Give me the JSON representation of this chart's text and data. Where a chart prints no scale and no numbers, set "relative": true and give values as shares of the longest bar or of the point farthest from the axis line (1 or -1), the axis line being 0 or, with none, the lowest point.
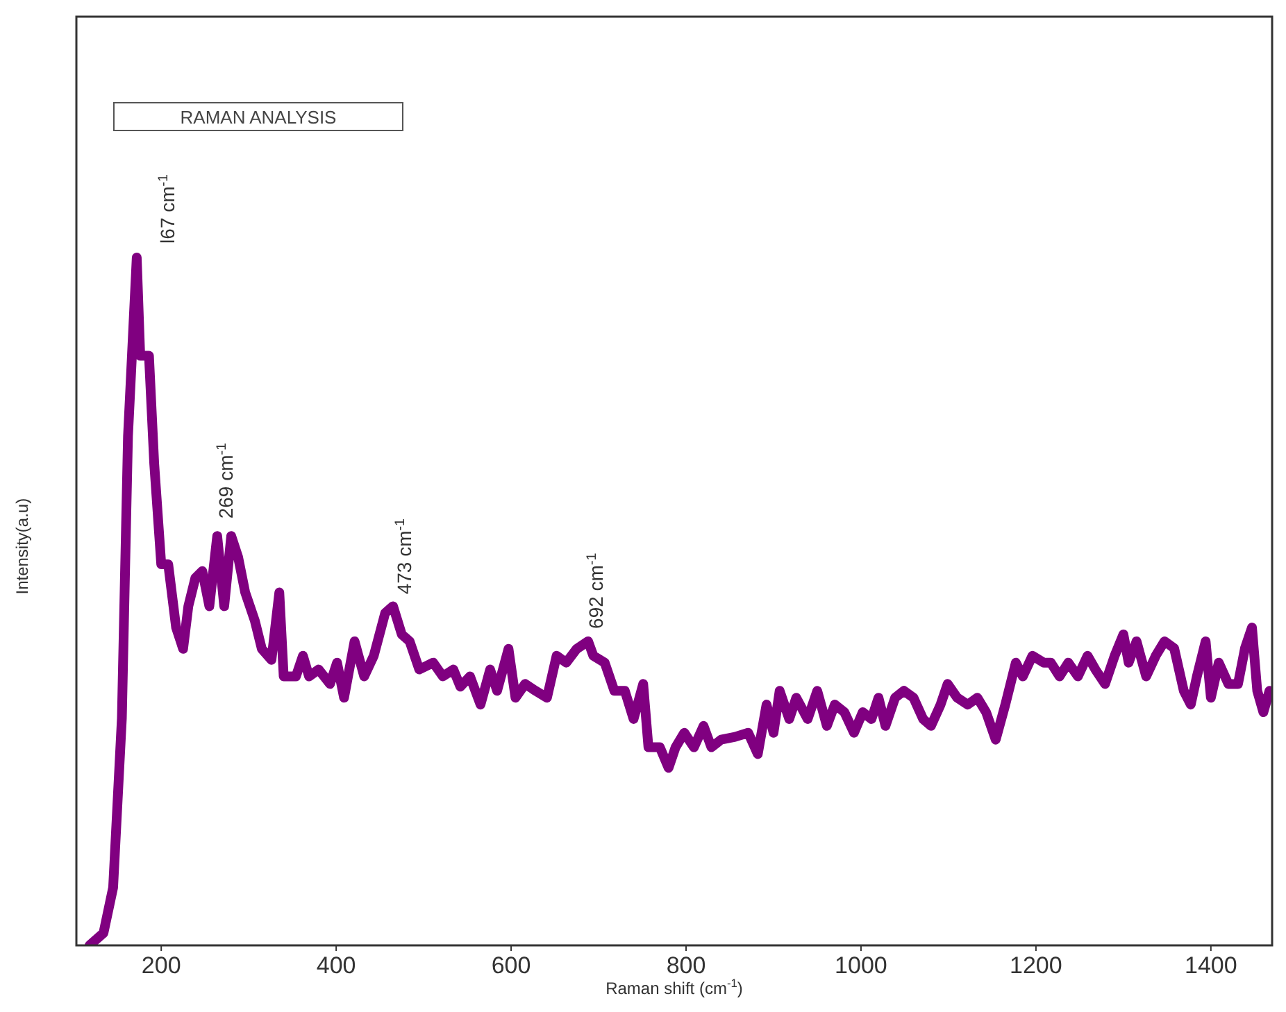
{
  "chart_data": {
    "type": "line",
    "relative": true,
    "xlabel": "Raman shift (cm$^{-1}$)",
    "ylabel": "Intensity(a.u)",
    "xlim": [
      103,
      1470
    ],
    "xticks": [
      200,
      400,
      600,
      800,
      1000,
      1200,
      1400
    ],
    "grid": false,
    "marker": "none",
    "line_style": "solid",
    "annotations": [
      "RAMAN ANALYSIS",
      {
        "text": "l67 cm$^{-1}$",
        "x": 167,
        "y": 1.0
      },
      {
        "text": "269 cm$^{-1}$",
        "x": 269,
        "y": 0.6
      },
      {
        "text": "473 cm$^{-1}$",
        "x": 473,
        "y": 0.49
      },
      {
        "text": "692 cm$^{-1}$",
        "x": 692,
        "y": 0.44
      }
    ],
    "series": [
      {
        "color": "#800080",
        "x": [
          118,
          134,
          145,
          155,
          162,
          172,
          176,
          186,
          192,
          200,
          208,
          217,
          225,
          231,
          239,
          247,
          255,
          264,
          272,
          280,
          288,
          296,
          307,
          315,
          326,
          335,
          340,
          354,
          362,
          369,
          380,
          393,
          401,
          409,
          421,
          432,
          443,
          456,
          465,
          475,
          484,
          495,
          511,
          522,
          534,
          542,
          553,
          565,
          576,
          584,
          597,
          605,
          616,
          628,
          641,
          652,
          663,
          675,
          688,
          694,
          707,
          718,
          730,
          740,
          751,
          757,
          770,
          780,
          788,
          798,
          809,
          820,
          829,
          840,
          856,
          871,
          882,
          892,
          900,
          907,
          918,
          926,
          939,
          950,
          961,
          970,
          981,
          992,
          1002,
          1012,
          1020,
          1028,
          1039,
          1049,
          1060,
          1071,
          1080,
          1091,
          1099,
          1110,
          1122,
          1133,
          1143,
          1154,
          1165,
          1177,
          1185,
          1196,
          1209,
          1217,
          1227,
          1237,
          1248,
          1259,
          1268,
          1279,
          1290,
          1300,
          1306,
          1315,
          1326,
          1337,
          1347,
          1358,
          1369,
          1377,
          1384,
          1394,
          1400,
          1409,
          1420,
          1431,
          1439,
          1447,
          1453,
          1460,
          1467
        ],
        "values": [
          0,
          0.018,
          0.084,
          0.33,
          0.74,
          1.0,
          0.857,
          0.857,
          0.7,
          0.554,
          0.554,
          0.462,
          0.431,
          0.493,
          0.534,
          0.544,
          0.493,
          0.595,
          0.493,
          0.595,
          0.564,
          0.513,
          0.472,
          0.431,
          0.415,
          0.513,
          0.391,
          0.391,
          0.421,
          0.391,
          0.401,
          0.38,
          0.411,
          0.36,
          0.442,
          0.391,
          0.421,
          0.483,
          0.493,
          0.452,
          0.442,
          0.401,
          0.411,
          0.391,
          0.401,
          0.376,
          0.391,
          0.35,
          0.401,
          0.37,
          0.431,
          0.36,
          0.38,
          0.37,
          0.36,
          0.421,
          0.411,
          0.431,
          0.442,
          0.421,
          0.411,
          0.37,
          0.37,
          0.329,
          0.38,
          0.288,
          0.288,
          0.258,
          0.288,
          0.309,
          0.288,
          0.319,
          0.288,
          0.299,
          0.303,
          0.309,
          0.278,
          0.35,
          0.309,
          0.37,
          0.329,
          0.36,
          0.329,
          0.37,
          0.319,
          0.35,
          0.339,
          0.309,
          0.339,
          0.329,
          0.36,
          0.319,
          0.36,
          0.37,
          0.36,
          0.329,
          0.319,
          0.35,
          0.38,
          0.36,
          0.35,
          0.36,
          0.339,
          0.299,
          0.35,
          0.411,
          0.391,
          0.421,
          0.411,
          0.411,
          0.391,
          0.411,
          0.391,
          0.421,
          0.401,
          0.38,
          0.421,
          0.452,
          0.411,
          0.442,
          0.391,
          0.421,
          0.442,
          0.432,
          0.37,
          0.35,
          0.391,
          0.442,
          0.36,
          0.411,
          0.38,
          0.38,
          0.432,
          0.462,
          0.37,
          0.339,
          0.37
        ]
      }
    ]
  }
}
